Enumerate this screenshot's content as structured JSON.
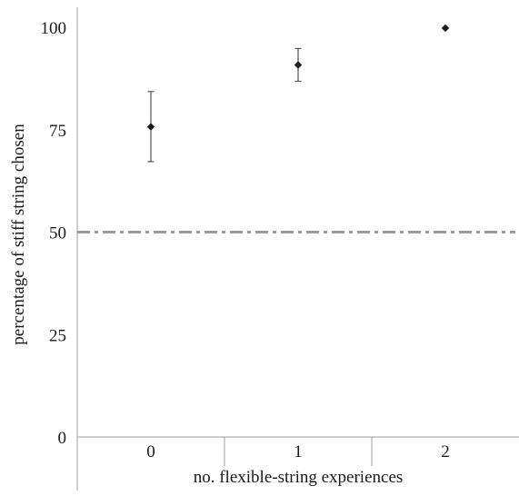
{
  "chart_data": {
    "type": "scatter",
    "title": "",
    "xlabel": "no. flexible-string experiences",
    "ylabel": "percentage of stiff string chosen",
    "categories": [
      "0",
      "1",
      "2"
    ],
    "series": [
      {
        "values": [
          75.7,
          90.8,
          99.8
        ],
        "error_low": [
          67.2,
          86.8,
          99.8
        ],
        "error_high": [
          84.3,
          94.8,
          99.8
        ]
      }
    ],
    "yticks": [
      "0",
      "25",
      "50",
      "75",
      "100"
    ],
    "ylim": [
      0,
      100
    ],
    "reference_line": {
      "y": 50,
      "style": "dash-dot"
    },
    "grid": false,
    "legend": "none",
    "colors": {
      "marker": "#1a1a1a",
      "errorbar": "#555555",
      "reference": "#9a9a9a",
      "axis": "#b0b0b0"
    }
  }
}
